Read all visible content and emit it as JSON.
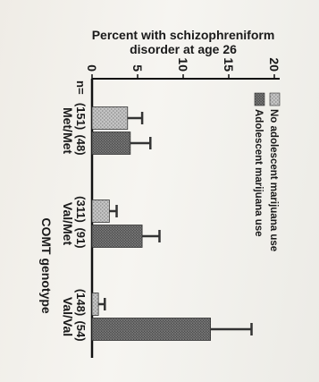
{
  "chart_data": {
    "type": "bar",
    "orientation": "vertical",
    "rotation_deg": 90,
    "ylabel_line1": "Percent with schizophreniform",
    "ylabel_line2": "disorder at age 26",
    "xlabel": "COMT genotype",
    "ylim": [
      0,
      20
    ],
    "y_ticks": [
      0,
      5,
      10,
      15,
      20
    ],
    "n_prefix": "n=",
    "categories": [
      "Met/Met",
      "Val/Met",
      "Val/Val"
    ],
    "n_values": [
      [
        "(151)",
        "(48)"
      ],
      [
        "(311)",
        "(91)"
      ],
      [
        "(148)",
        "(54)"
      ]
    ],
    "series": [
      {
        "name": "No adolescent marijuana use",
        "values": [
          3.9,
          1.9,
          0.7
        ],
        "error": [
          1.6,
          0.8,
          0.7
        ],
        "color": "#c4c4c4"
      },
      {
        "name": "Adolescent marijuana use",
        "values": [
          4.2,
          5.5,
          13.0
        ],
        "error": [
          2.2,
          1.9,
          4.5
        ],
        "color": "#7a7a7a"
      }
    ],
    "legend_position": "top-left",
    "grid": false
  }
}
